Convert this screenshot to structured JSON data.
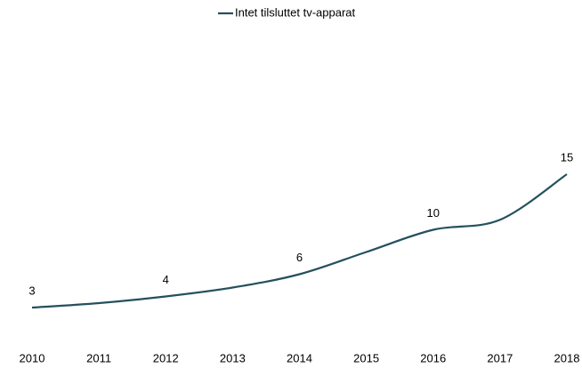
{
  "chart_data": {
    "type": "line",
    "categories": [
      "2010",
      "2011",
      "2012",
      "2013",
      "2014",
      "2015",
      "2016",
      "2017",
      "2018"
    ],
    "series": [
      {
        "name": "Intet tilsluttet tv-apparat",
        "color": "#24505e",
        "values": [
          3,
          3.4,
          4,
          4.8,
          6,
          8,
          10,
          10.9,
          15
        ],
        "value_labels": [
          "3",
          null,
          "4",
          null,
          "6",
          null,
          "10",
          null,
          "15"
        ]
      }
    ],
    "ylim": [
      0,
      25
    ],
    "legend": "top"
  }
}
